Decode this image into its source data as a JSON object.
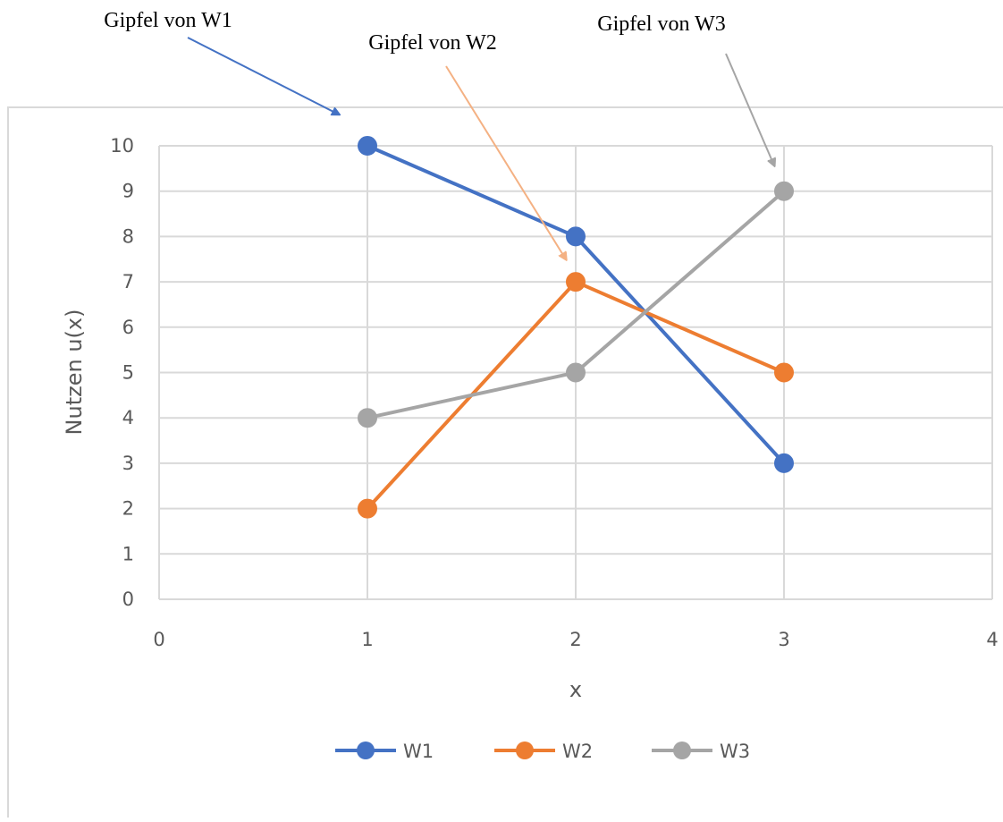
{
  "chart_data": {
    "type": "line",
    "title": "",
    "xlabel": "x",
    "ylabel": "Nutzen u(x)",
    "xlim": [
      0,
      4
    ],
    "ylim": [
      0,
      10
    ],
    "xticks": [
      "0",
      "1",
      "2",
      "3",
      "4"
    ],
    "yticks": [
      "0",
      "1",
      "2",
      "3",
      "4",
      "5",
      "6",
      "7",
      "8",
      "9",
      "10"
    ],
    "grid": true,
    "legend_position": "bottom",
    "x": [
      1,
      2,
      3
    ],
    "series": [
      {
        "name": "W1",
        "values": [
          10,
          8,
          3
        ],
        "color": "#4472C4"
      },
      {
        "name": "W2",
        "values": [
          2,
          7,
          5
        ],
        "color": "#ED7D31"
      },
      {
        "name": "W3",
        "values": [
          4,
          5,
          9
        ],
        "color": "#A5A5A5"
      }
    ],
    "annotations": [
      {
        "text": "Gipfel von W1",
        "target_x": 1,
        "target_y": 10,
        "color": "#4472C4"
      },
      {
        "text": "Gipfel von W2",
        "target_x": 2,
        "target_y": 7,
        "color": "#F4B183"
      },
      {
        "text": "Gipfel von W3",
        "target_x": 3,
        "target_y": 9,
        "color": "#A5A5A5"
      }
    ]
  }
}
